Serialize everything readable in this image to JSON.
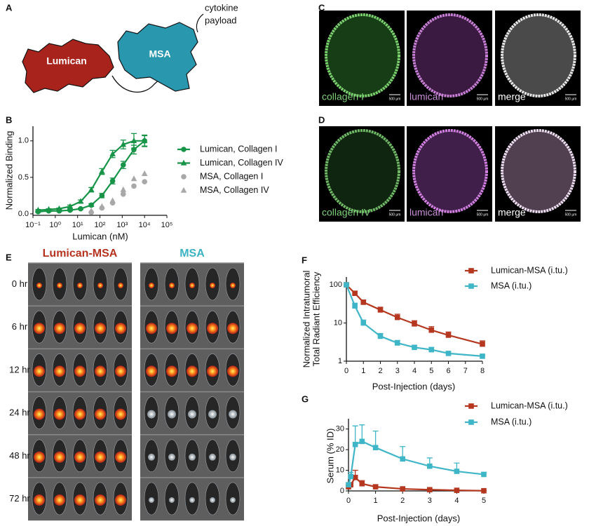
{
  "panel_labels": [
    "A",
    "B",
    "C",
    "D",
    "E",
    "F",
    "G"
  ],
  "diagram": {
    "lumican": "Lumican",
    "msa": "MSA",
    "payload": [
      "cytokine",
      "payload"
    ]
  },
  "microscopy": {
    "row_c": [
      "collagen I",
      "lumican",
      "merge"
    ],
    "row_d": [
      "collagen IV",
      "lumican",
      "merge"
    ],
    "scale_bar": "500 μm"
  },
  "imaging": {
    "groups": [
      "Lumican-MSA",
      "MSA"
    ],
    "times": [
      "0 hr",
      "6 hr",
      "12 hr",
      "24 hr",
      "48 hr",
      "72 hr"
    ]
  },
  "chart_data": [
    {
      "type": "line",
      "xlabel": "Lumican (nM)",
      "ylabel": "Normalized Binding",
      "xlog": true,
      "xlim": [
        0.1,
        100000
      ],
      "xticks": [
        {
          "value": 0.1,
          "label": "10⁻¹"
        },
        {
          "value": 1,
          "label": "10⁰"
        },
        {
          "value": 10,
          "label": "10¹"
        },
        {
          "value": 100,
          "label": "10²"
        },
        {
          "value": 1000,
          "label": "10³"
        },
        {
          "value": 10000,
          "label": "10⁴"
        },
        {
          "value": 100000,
          "label": "10⁵"
        }
      ],
      "ylim": [
        -0.02,
        1.2
      ],
      "yticks": [
        {
          "value": 0,
          "label": "0.0"
        },
        0.5,
        {
          "value": 1,
          "label": "1.0"
        }
      ],
      "errorbars": "both",
      "series": [
        {
          "name": "Lumican, Collagen I",
          "color": "#179447",
          "marker": "circle",
          "line": true,
          "x": [
            0.17,
            0.51,
            1.5,
            4.6,
            13.7,
            41,
            123,
            370,
            1111,
            3333,
            10000
          ],
          "values": [
            0.03,
            0.04,
            0.04,
            0.05,
            0.07,
            0.12,
            0.25,
            0.45,
            0.67,
            0.88,
            1.0
          ],
          "errors": [
            0.01,
            0.01,
            0.01,
            0.01,
            0.01,
            0.02,
            0.03,
            0.04,
            0.05,
            0.06,
            0.07
          ]
        },
        {
          "name": "Lumican, Collagen IV",
          "color": "#179447",
          "marker": "triangle",
          "line": true,
          "x": [
            0.17,
            0.51,
            1.5,
            4.6,
            13.7,
            41,
            123,
            370,
            1111,
            3333,
            10000
          ],
          "values": [
            0.05,
            0.06,
            0.07,
            0.1,
            0.17,
            0.33,
            0.58,
            0.82,
            0.95,
            1.0,
            1.0
          ],
          "errors": [
            0.01,
            0.01,
            0.01,
            0.02,
            0.02,
            0.03,
            0.04,
            0.05,
            0.06,
            0.1,
            0.08
          ]
        },
        {
          "name": "MSA, Collagen I",
          "color": "#a8a8a8",
          "marker": "circle",
          "line": false,
          "x": [
            41,
            123,
            370,
            1111,
            3333,
            10000
          ],
          "values": [
            0.02,
            0.08,
            0.15,
            0.27,
            0.38,
            0.44
          ]
        },
        {
          "name": "MSA, Collagen IV",
          "color": "#a8a8a8",
          "marker": "triangle",
          "line": false,
          "x": [
            41,
            123,
            370,
            1111,
            3333,
            10000
          ],
          "values": [
            0.04,
            0.1,
            0.18,
            0.33,
            0.48,
            0.55
          ]
        }
      ]
    },
    {
      "type": "line",
      "xlabel": "Post-Injection (days)",
      "ylabel": [
        "Normalized Intratumoral",
        "Total Radiant Efficiency"
      ],
      "ylog": true,
      "xlim": [
        0,
        8
      ],
      "xticks": [
        0,
        1,
        2,
        3,
        4,
        5,
        6,
        7,
        8
      ],
      "ylim": [
        1,
        160
      ],
      "yticks": [
        1,
        10,
        100
      ],
      "errorbars": "up",
      "series": [
        {
          "name": "Lumican-MSA (i.tu.)",
          "color": "#b5371f",
          "marker": "square",
          "line": true,
          "x": [
            0,
            0.5,
            1,
            2,
            3,
            4,
            5,
            6,
            8
          ],
          "values": [
            100,
            60,
            35,
            22,
            14,
            9.5,
            6.5,
            4.8,
            2.8
          ],
          "errors": [
            0,
            8,
            5,
            4,
            3,
            2,
            1.5,
            1,
            0.6
          ]
        },
        {
          "name": "MSA (i.tu.)",
          "color": "#3fb6c8",
          "marker": "square",
          "line": true,
          "x": [
            0,
            0.5,
            1,
            2,
            3,
            4,
            5,
            6,
            8
          ],
          "values": [
            100,
            28,
            10,
            4.5,
            3,
            2.3,
            2,
            1.6,
            1.35
          ],
          "errors": [
            0,
            5,
            2,
            0.8,
            0.5,
            0.3,
            0.3,
            0.2,
            0.1
          ]
        }
      ]
    },
    {
      "type": "line",
      "xlabel": "Post-Injection (days)",
      "ylabel": "Serum (% ID)",
      "xlim": [
        0,
        5
      ],
      "xticks": [
        0,
        1,
        2,
        3,
        4,
        5
      ],
      "ylim": [
        0,
        35
      ],
      "yticks": [
        0,
        10,
        20,
        30
      ],
      "errorbars": "up",
      "series": [
        {
          "name": "Lumican-MSA (i.tu.)",
          "color": "#b5371f",
          "marker": "square",
          "line": true,
          "x": [
            0,
            0.083,
            0.25,
            0.5,
            1,
            2,
            3,
            4,
            5
          ],
          "values": [
            2,
            3,
            6.5,
            3.5,
            2,
            1,
            0.6,
            0.3,
            0.1
          ],
          "errors": [
            0.5,
            1,
            3.5,
            1.5,
            1,
            0.4,
            0.3,
            0.2,
            0.1
          ]
        },
        {
          "name": "MSA (i.tu.)",
          "color": "#3fb6c8",
          "marker": "square",
          "line": true,
          "x": [
            0,
            0.083,
            0.25,
            0.5,
            1,
            2,
            3,
            4,
            5
          ],
          "values": [
            3,
            7,
            22.5,
            24,
            21,
            15.5,
            12,
            9.5,
            8
          ],
          "errors": [
            1,
            2,
            9,
            8,
            8,
            6,
            4,
            4,
            1
          ]
        }
      ]
    }
  ]
}
